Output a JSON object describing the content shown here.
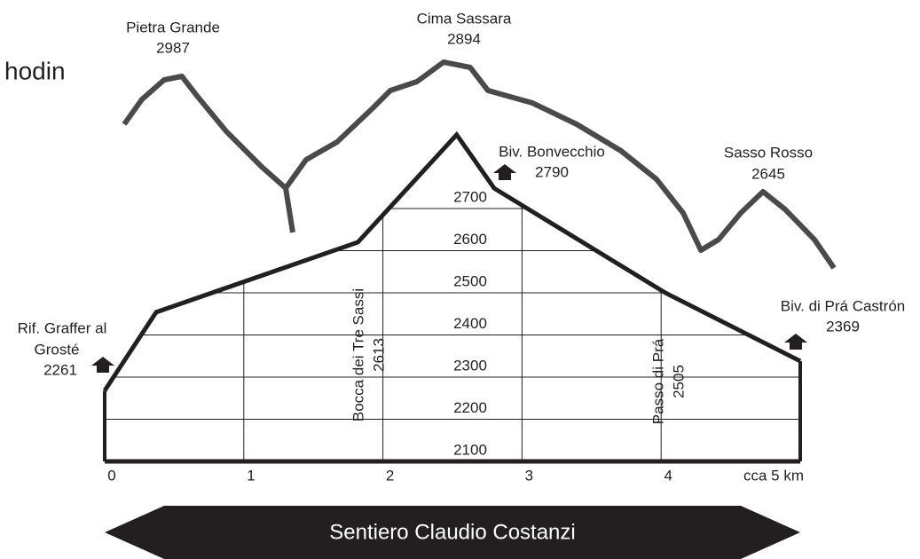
{
  "chart_data": {
    "type": "area",
    "x": [
      0,
      0.37,
      1.82,
      2.53,
      2.8,
      4.03,
      5
    ],
    "values": [
      2268,
      2454,
      2620,
      2875,
      2748,
      2500,
      2338
    ],
    "color": "#231f20",
    "xlim": [
      0,
      5
    ],
    "xticks": [
      0,
      1,
      2,
      3,
      4,
      {
        "value": 5,
        "label": "cca 5 km"
      }
    ],
    "ylim": [
      2100,
      2900
    ],
    "yticks": [
      2100,
      2200,
      2300,
      2400,
      2500,
      2600,
      2700
    ],
    "grid": true,
    "annotations": {
      "cropped_text": "hodin",
      "peaks": [
        {
          "name": "Pietra Grande",
          "elevation": 2987
        },
        {
          "name": "Cima Sassara",
          "elevation": 2894
        },
        {
          "name": "Sasso Rosso",
          "elevation": 2645
        }
      ],
      "huts": [
        {
          "name_lines": [
            "Rif. Graffer al",
            "Grosté"
          ],
          "elevation": 2261
        },
        {
          "name_lines": [
            "Biv. Bonvecchio"
          ],
          "elevation": 2790
        },
        {
          "name_lines": [
            "Biv. di Prá Castrón"
          ],
          "elevation": 2369
        }
      ],
      "passes": [
        {
          "name": "Bocca dei Tre Sassi",
          "elevation": 2613
        },
        {
          "name": "Passo di Prá",
          "elevation": 2505
        }
      ],
      "route": "Sentiero Claudio Costanzi"
    }
  }
}
